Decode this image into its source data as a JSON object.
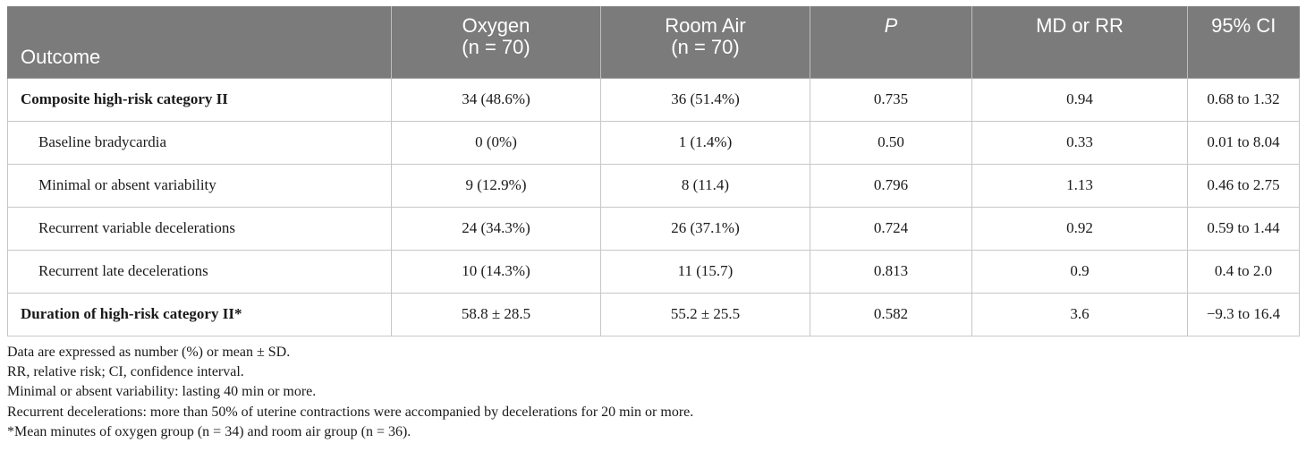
{
  "table": {
    "headers": {
      "outcome": "Outcome",
      "oxygen": [
        "Oxygen",
        "(n = 70)"
      ],
      "room_air": [
        "Room Air",
        "(n = 70)"
      ],
      "p": "P",
      "md_rr": "MD or RR",
      "ci": "95% CI"
    },
    "rows": [
      {
        "label": "Composite high-risk category II",
        "oxygen": "34 (48.6%)",
        "room_air": "36 (51.4%)",
        "p": "0.735",
        "md_rr": "0.94",
        "ci": "0.68 to 1.32"
      },
      {
        "label": "Baseline bradycardia",
        "oxygen": "0 (0%)",
        "room_air": "1 (1.4%)",
        "p": "0.50",
        "md_rr": "0.33",
        "ci": "0.01 to 8.04"
      },
      {
        "label": "Minimal or absent variability",
        "oxygen": "9 (12.9%)",
        "room_air": "8 (11.4)",
        "p": "0.796",
        "md_rr": "1.13",
        "ci": "0.46 to 2.75"
      },
      {
        "label": "Recurrent variable decelerations",
        "oxygen": "24 (34.3%)",
        "room_air": "26 (37.1%)",
        "p": "0.724",
        "md_rr": "0.92",
        "ci": "0.59 to 1.44"
      },
      {
        "label": "Recurrent late decelerations",
        "oxygen": "10 (14.3%)",
        "room_air": "11 (15.7)",
        "p": "0.813",
        "md_rr": "0.9",
        "ci": "0.4 to 2.0"
      },
      {
        "label": "Duration of high-risk category II*",
        "oxygen": "58.8 ± 28.5",
        "room_air": "55.2 ± 25.5",
        "p": "0.582",
        "md_rr": "3.6",
        "ci": "−9.3 to 16.4"
      }
    ]
  },
  "footnotes": [
    "Data are expressed as number (%) or mean ± SD.",
    "RR, relative risk; CI, confidence interval.",
    "Minimal or absent variability: lasting 40 min or more.",
    "Recurrent decelerations: more than 50% of uterine contractions were accompanied by decelerations for 20 min or more.",
    "*Mean minutes of oxygen group (n = 34) and room air group (n = 36)."
  ]
}
